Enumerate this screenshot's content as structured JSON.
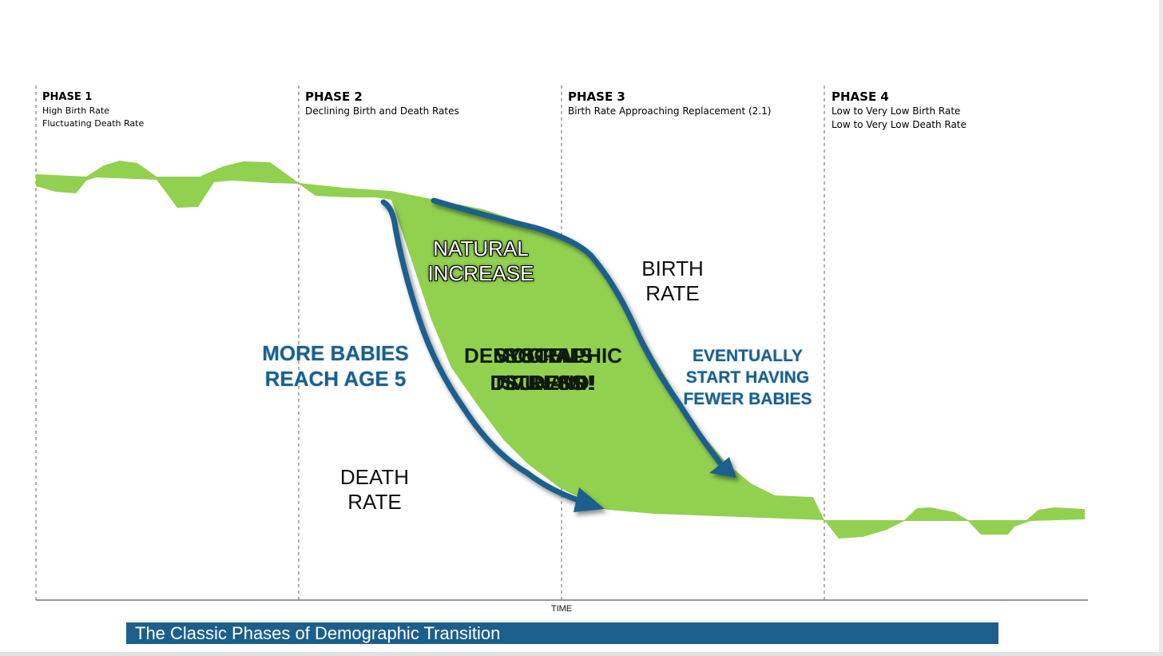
{
  "phases": [
    {
      "title": "PHASE 1",
      "lines": [
        "High Birth Rate",
        "Fluctuating Death Rate"
      ]
    },
    {
      "title": "PHASE 2",
      "lines": [
        "Declining Birth and Death Rates"
      ]
    },
    {
      "title": "PHASE 3",
      "lines": [
        "Birth Rate Approaching Replacement (2.1)"
      ]
    },
    {
      "title": "PHASE 4",
      "lines": [
        "Low to Very Low Birth Rate",
        "Low to Very Low Death Rate"
      ]
    }
  ],
  "labels": {
    "natural_increase": [
      "NATURAL",
      "INCREASE"
    ],
    "birth_rate": [
      "BIRTH",
      "RATE"
    ],
    "death_rate": [
      "DEATH",
      "RATE"
    ],
    "more_babies": [
      "MORE BABIES",
      "REACH AGE 5"
    ],
    "fewer_babies": [
      "EVENTUALLY",
      "START HAVING",
      "FEWER BABIES"
    ],
    "overlap_texts": [
      [
        "DEMOGRAPHIC",
        "DIVIDEND!"
      ],
      [
        "SOCIAL",
        "TSUNAMI!"
      ],
      [
        "SYSTEMS",
        "STRESS"
      ]
    ]
  },
  "axis": {
    "x_label": "TIME"
  },
  "banner": {
    "text": "The Classic Phases of Demographic Transition"
  },
  "colors": {
    "fill": "#92d050",
    "arrow": "#1c5f8d",
    "banner": "#1c5f8d",
    "blue_text": "#1d5f8a"
  }
}
